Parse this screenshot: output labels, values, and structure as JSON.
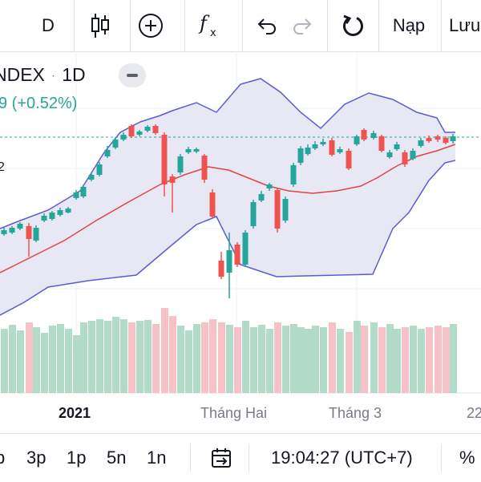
{
  "toolbar": {
    "interval": "D",
    "candle_icon": "candlestick-icon",
    "add_icon": "plus-circle-icon",
    "indicator_icon": "function-icon",
    "undo_icon": "undo-icon",
    "redo_icon": "redo-icon",
    "reload_icon": "reload-icon",
    "load_label": "Nạp",
    "save_label": "Lưu"
  },
  "legend": {
    "symbol": "NDEX",
    "interval": "1D",
    "change_partial": "9 (+0.52%)",
    "left_tick": "2"
  },
  "chart_data": {
    "type": "candlestick",
    "indicator": "Bollinger Bands",
    "x_labels": [
      "2021",
      "Tháng Hai",
      "Tháng 3",
      "22"
    ],
    "colors": {
      "up": "#26a69a",
      "down": "#ef5350",
      "band": "#5b5bd6",
      "basis": "#e04545",
      "band_fill": "#e8e8f5",
      "vol_up": "#a5d6c0",
      "vol_down": "#f4b6bd",
      "last_price_line": "#26a69a"
    }
  },
  "bottom": {
    "tf_5y": "5n",
    "tf_1y": "1n",
    "tf_3m": "3p",
    "tf_1m": "1p",
    "tf_partial": "p",
    "date_range_icon": "date-range-icon",
    "time": "19:04:27 (UTC+7)",
    "percent": "%"
  }
}
